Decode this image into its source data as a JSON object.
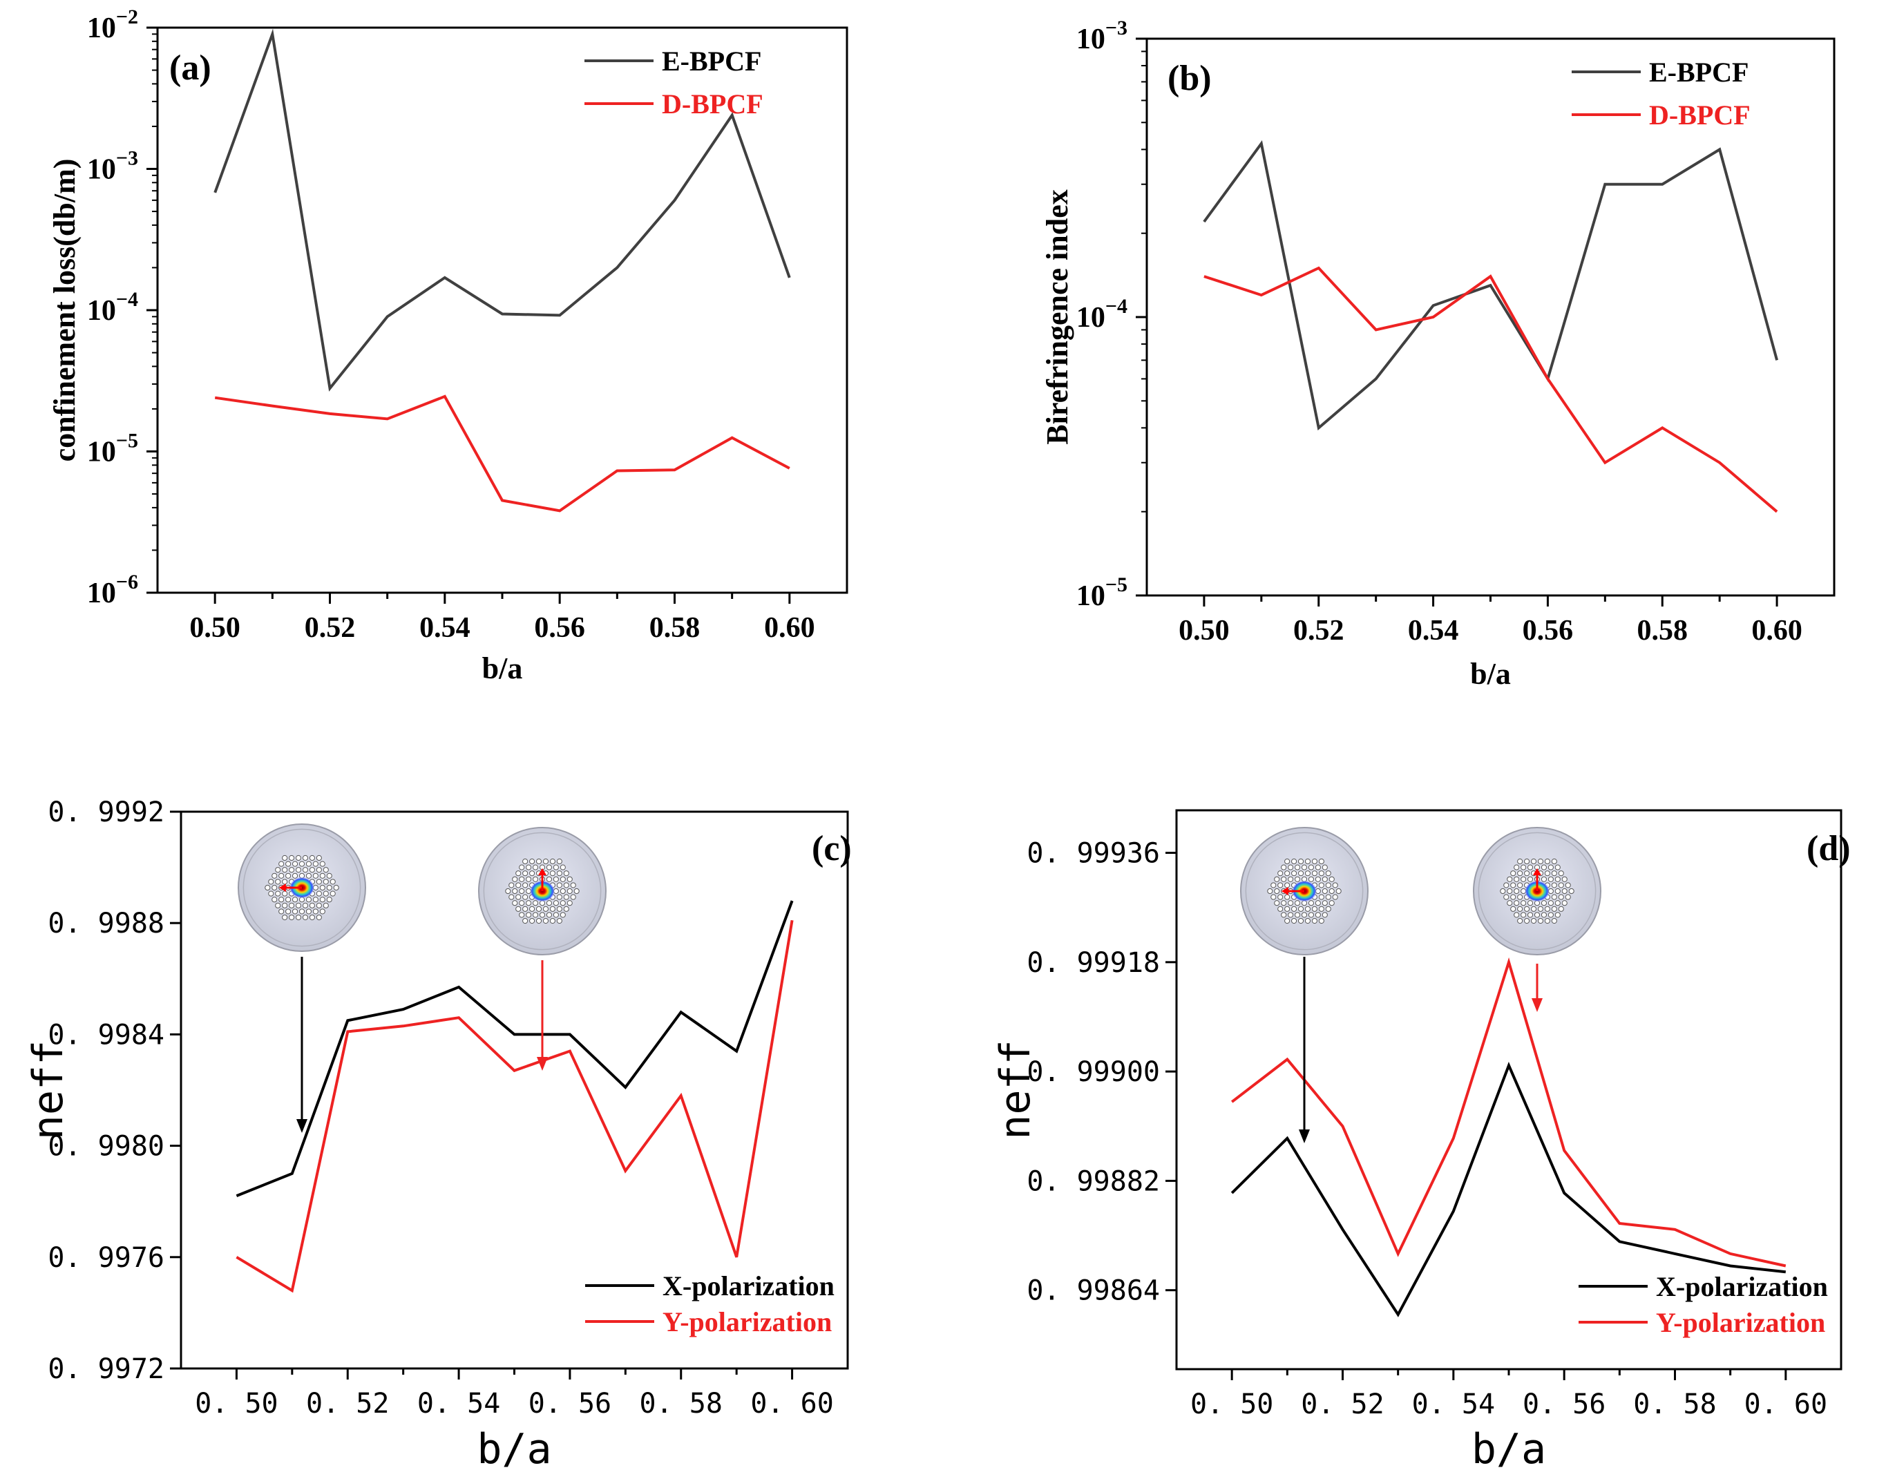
{
  "panels": [
    {
      "label": "(a)",
      "chart_data": {
        "type": "line",
        "title": "",
        "xlabel": "b/a",
        "ylabel": "confinement loss(db/m)",
        "yscale": "log",
        "xlim": [
          0.49,
          0.61
        ],
        "ylim": [
          1e-06,
          0.01
        ],
        "x": [
          0.5,
          0.51,
          0.52,
          0.53,
          0.54,
          0.55,
          0.56,
          0.57,
          0.58,
          0.59,
          0.6
        ],
        "xticks": [
          "0.50",
          "0.52",
          "0.54",
          "0.56",
          "0.58",
          "0.60"
        ],
        "ytick_mantissa": [
          "10",
          "10",
          "10",
          "10",
          "10"
        ],
        "ytick_exponent": [
          "-6",
          "-5",
          "-4",
          "-3",
          "-2"
        ],
        "series": [
          {
            "name": "E-BPCF",
            "color": "#404040",
            "values": [
              0.00068,
              0.009,
              2.8e-05,
              9e-05,
              0.00017,
              9.4e-05,
              9.2e-05,
              0.0002,
              0.0006,
              0.0024,
              0.00017
            ]
          },
          {
            "name": "D-BPCF",
            "color": "#ee2222",
            "values": [
              2.4e-05,
              2.1e-05,
              1.85e-05,
              1.7e-05,
              2.45e-05,
              4.5e-06,
              3.8e-06,
              7.3e-06,
              7.4e-06,
              1.25e-05,
              7.6e-06
            ]
          }
        ],
        "legend_position": "top-right",
        "grid": false
      }
    },
    {
      "label": "(b)",
      "chart_data": {
        "type": "line",
        "title": "",
        "xlabel": "b/a",
        "ylabel": "Birefringence index",
        "yscale": "log",
        "xlim": [
          0.49,
          0.61
        ],
        "ylim": [
          1e-05,
          0.001
        ],
        "x": [
          0.5,
          0.51,
          0.52,
          0.53,
          0.54,
          0.55,
          0.56,
          0.57,
          0.58,
          0.59,
          0.6
        ],
        "xticks": [
          "0.50",
          "0.52",
          "0.54",
          "0.56",
          "0.58",
          "0.60"
        ],
        "ytick_mantissa": [
          "10",
          "10",
          "10"
        ],
        "ytick_exponent": [
          "-5",
          "-4",
          "-3"
        ],
        "series": [
          {
            "name": "E-BPCF",
            "color": "#404040",
            "values": [
              0.00022,
              0.00042,
              4e-05,
              6e-05,
              0.00011,
              0.00013,
              6e-05,
              0.0003,
              0.0003,
              0.0004,
              7e-05
            ]
          },
          {
            "name": "D-BPCF",
            "color": "#ee2222",
            "values": [
              0.00014,
              0.00012,
              0.00015,
              9e-05,
              0.0001,
              0.00014,
              6e-05,
              3e-05,
              4e-05,
              3e-05,
              2e-05
            ]
          }
        ],
        "legend_position": "top-right",
        "grid": false
      }
    },
    {
      "label": "(c)",
      "chart_data": {
        "type": "line",
        "title": "",
        "xlabel": "b/a",
        "ylabel": "neff",
        "xlim": [
          0.49,
          0.61
        ],
        "ylim": [
          0.9972,
          0.9992
        ],
        "x": [
          0.5,
          0.51,
          0.52,
          0.53,
          0.54,
          0.55,
          0.56,
          0.57,
          0.58,
          0.59,
          0.6
        ],
        "xticks": [
          "0. 50",
          "0. 52",
          "0. 54",
          "0. 56",
          "0. 58",
          "0. 60"
        ],
        "yticks": [
          "0. 9972",
          "0. 9976",
          "0. 9980",
          "0. 9984",
          "0. 9988",
          "0. 9992"
        ],
        "series": [
          {
            "name": "X-polarization",
            "color": "#000000",
            "values": [
              0.99782,
              0.9979,
              0.99845,
              0.99849,
              0.99857,
              0.9984,
              0.9984,
              0.99821,
              0.99848,
              0.99834,
              0.99888
            ]
          },
          {
            "name": "Y-polarization",
            "color": "#ee2222",
            "values": [
              0.9976,
              0.99748,
              0.99841,
              0.99843,
              0.99846,
              0.99827,
              0.99834,
              0.99791,
              0.99818,
              0.9976,
              0.99881
            ]
          }
        ],
        "legend_position": "bottom-right",
        "grid": false
      }
    },
    {
      "label": "(d)",
      "chart_data": {
        "type": "line",
        "title": "",
        "xlabel": "b/a",
        "ylabel": "neff",
        "xlim": [
          0.49,
          0.61
        ],
        "ylim": [
          0.99851,
          0.99943
        ],
        "x": [
          0.5,
          0.51,
          0.52,
          0.53,
          0.54,
          0.55,
          0.56,
          0.57,
          0.58,
          0.59,
          0.6
        ],
        "xticks": [
          "0. 50",
          "0. 52",
          "0. 54",
          "0. 56",
          "0. 58",
          "0. 60"
        ],
        "yticks": [
          "0. 99864",
          "0. 99882",
          "0. 99900",
          "0. 99918",
          "0. 99936"
        ],
        "series": [
          {
            "name": "X-polarization",
            "color": "#000000",
            "values": [
              0.9988,
              0.99889,
              0.99874,
              0.9986,
              0.99877,
              0.99901,
              0.9988,
              0.99872,
              0.9987,
              0.99868,
              0.99867
            ]
          },
          {
            "name": "Y-polarization",
            "color": "#ee2222",
            "values": [
              0.99895,
              0.99902,
              0.99891,
              0.9987,
              0.99889,
              0.99918,
              0.99887,
              0.99875,
              0.99874,
              0.9987,
              0.99868
            ]
          }
        ],
        "legend_position": "bottom-right",
        "grid": false
      }
    }
  ],
  "colors": {
    "axis": "#000000",
    "e_bpcf": "#404040",
    "red": "#ee2222"
  },
  "insets": [
    {
      "panel": 2,
      "arrow_x": 0.512,
      "arrow_color": "#000000",
      "field_arrow": "left"
    },
    {
      "panel": 2,
      "arrow_x": 0.553,
      "arrow_color": "#ee2222",
      "field_arrow": "up"
    },
    {
      "panel": 3,
      "arrow_x": 0.512,
      "arrow_color": "#000000",
      "field_arrow": "left"
    },
    {
      "panel": 3,
      "arrow_x": 0.553,
      "arrow_color": "#ee2222",
      "field_arrow": "up"
    }
  ]
}
